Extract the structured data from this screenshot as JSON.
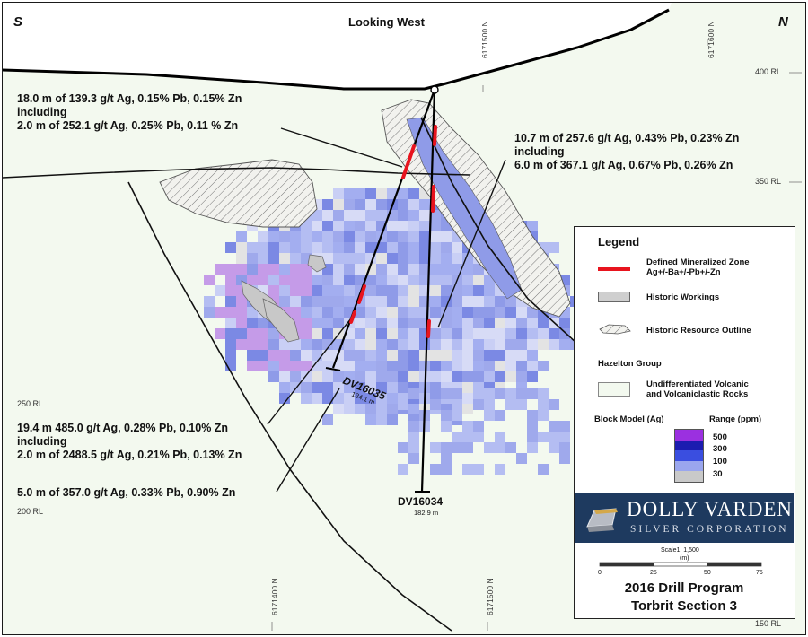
{
  "view": {
    "title": "Looking West",
    "south": "S",
    "north": "N"
  },
  "grid": {
    "northings_top": [
      "6171500 N",
      "6171600 N"
    ],
    "northings_bottom": [
      "6171400 N",
      "6171500 N"
    ],
    "elevations": [
      "400 RL",
      "350 RL",
      "250 RL",
      "200 RL",
      "150 RL"
    ]
  },
  "drillholes": [
    {
      "id": "DV16035",
      "length": "134.1 m"
    },
    {
      "id": "DV16034",
      "length": "182.9 m"
    }
  ],
  "annotations": [
    {
      "lines": [
        "18.0 m of 139.3 g/t Ag, 0.15% Pb, 0.15% Zn",
        "including",
        "2.0 m of 252.1 g/t Ag, 0.25% Pb, 0.11 % Zn"
      ]
    },
    {
      "lines": [
        "10.7 m of 257.6 g/t Ag, 0.43% Pb, 0.23% Zn",
        "including",
        "6.0 m of 367.1 g/t Ag, 0.67% Pb, 0.26% Zn"
      ]
    },
    {
      "lines": [
        "19.4 m 485.0 g/t Ag, 0.28% Pb, 0.10% Zn",
        "including",
        "2.0 m of 2488.5 g/t Ag, 0.21% Pb, 0.13% Zn"
      ]
    },
    {
      "lines": [
        "5.0 m of 357.0 g/t Ag, 0.33% Pb, 0.90% Zn"
      ]
    }
  ],
  "legend": {
    "title": "Legend",
    "mineralized_zone": [
      "Defined Mineralized Zone",
      "Ag+/-Ba+/-Pb+/-Zn"
    ],
    "historic_workings": "Historic Workings",
    "historic_resource": "Historic Resource Outline",
    "group_title": "Hazelton Group",
    "volcanic": [
      "Undifferentiated Volcanic",
      "and Volcaniclastic Rocks"
    ],
    "block_model": "Block Model (Ag)",
    "range": "Range (ppm)",
    "range_values": [
      "500",
      "300",
      "100",
      "30"
    ],
    "range_colors": [
      "#9b30e0",
      "#1c1cb0",
      "#3a4ee0",
      "#9aa6ee",
      "#c9c9c9"
    ]
  },
  "logo": {
    "name": "DOLLY VARDEN",
    "subtitle": "SILVER CORPORATION"
  },
  "scale": {
    "label": "Scale1: 1,500",
    "unit": "(m)",
    "ticks": [
      "0",
      "25",
      "50",
      "75"
    ]
  },
  "program": {
    "line1": "2016 Drill Program",
    "line2": "Torbrit Section 3"
  }
}
